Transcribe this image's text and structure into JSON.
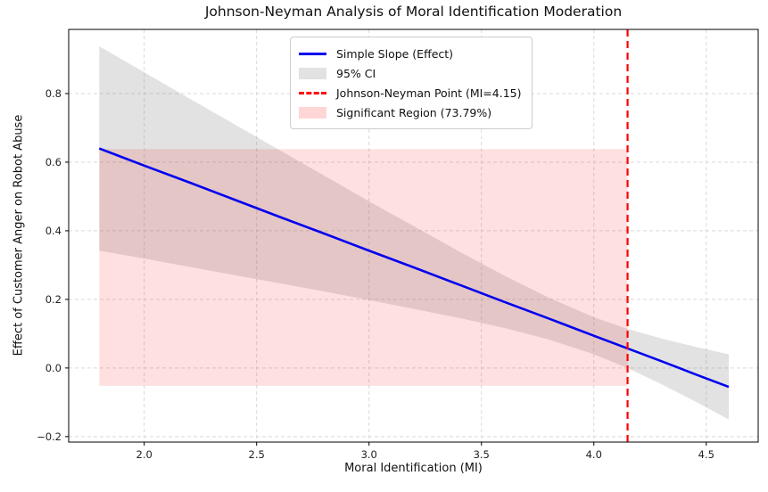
{
  "chart_data": {
    "type": "line",
    "title": "Johnson-Neyman Analysis of Moral Identification Moderation",
    "xlabel": "Moral Identification (MI)",
    "ylabel": "Effect of Customer Anger on Robot Abuse",
    "xlim": [
      1.664,
      4.731
    ],
    "ylim": [
      -0.216,
      0.987
    ],
    "grid": true,
    "legend_position": "upper center",
    "x_ticks": [
      {
        "v": 2.0,
        "label": "2.0"
      },
      {
        "v": 2.5,
        "label": "2.5"
      },
      {
        "v": 3.0,
        "label": "3.0"
      },
      {
        "v": 3.5,
        "label": "3.5"
      },
      {
        "v": 4.0,
        "label": "4.0"
      },
      {
        "v": 4.5,
        "label": "4.5"
      }
    ],
    "y_ticks": [
      {
        "v": -0.2,
        "label": "−0.2"
      },
      {
        "v": 0.0,
        "label": "0.0"
      },
      {
        "v": 0.2,
        "label": "0.2"
      },
      {
        "v": 0.4,
        "label": "0.4"
      },
      {
        "v": 0.6,
        "label": "0.6"
      },
      {
        "v": 0.8,
        "label": "0.8"
      }
    ],
    "series": {
      "x": [
        1.8,
        2.0,
        2.2,
        2.4,
        2.6,
        2.8,
        3.0,
        3.2,
        3.4,
        3.6,
        3.8,
        4.0,
        4.15,
        4.3,
        4.45,
        4.6
      ],
      "effect": [
        0.64,
        0.59,
        0.541,
        0.491,
        0.441,
        0.392,
        0.342,
        0.293,
        0.243,
        0.193,
        0.144,
        0.094,
        0.057,
        0.02,
        -0.018,
        -0.055
      ],
      "ci_lower": [
        0.342,
        0.319,
        0.295,
        0.271,
        0.247,
        0.223,
        0.198,
        0.172,
        0.146,
        0.117,
        0.083,
        0.04,
        0.0,
        -0.047,
        -0.097,
        -0.15
      ],
      "ci_upper": [
        0.938,
        0.862,
        0.786,
        0.711,
        0.636,
        0.561,
        0.486,
        0.413,
        0.34,
        0.27,
        0.205,
        0.148,
        0.114,
        0.086,
        0.062,
        0.04
      ]
    },
    "jn_point": 4.15,
    "significant_region": {
      "x_start": 1.8,
      "x_end": 4.15,
      "y_bottom": -0.052,
      "y_top": 0.638,
      "percent": "73.79%"
    },
    "legend": {
      "items": [
        {
          "label": "Simple Slope (Effect)",
          "swatch": "line"
        },
        {
          "label": "95% CI",
          "swatch": "ci"
        },
        {
          "label": "Johnson-Neyman Point (MI=4.15)",
          "swatch": "jn"
        },
        {
          "label": "Significant Region (73.79%)",
          "swatch": "sig"
        }
      ]
    },
    "colors": {
      "line": "#0000EE",
      "jn_line": "#FF0000",
      "ci_fill": "#808080",
      "ci_alpha": 0.23,
      "sig_fill": "#FF0000",
      "sig_alpha": 0.12,
      "grid": "#D9D9D9",
      "spine": "#000000",
      "text": "#111111"
    }
  }
}
